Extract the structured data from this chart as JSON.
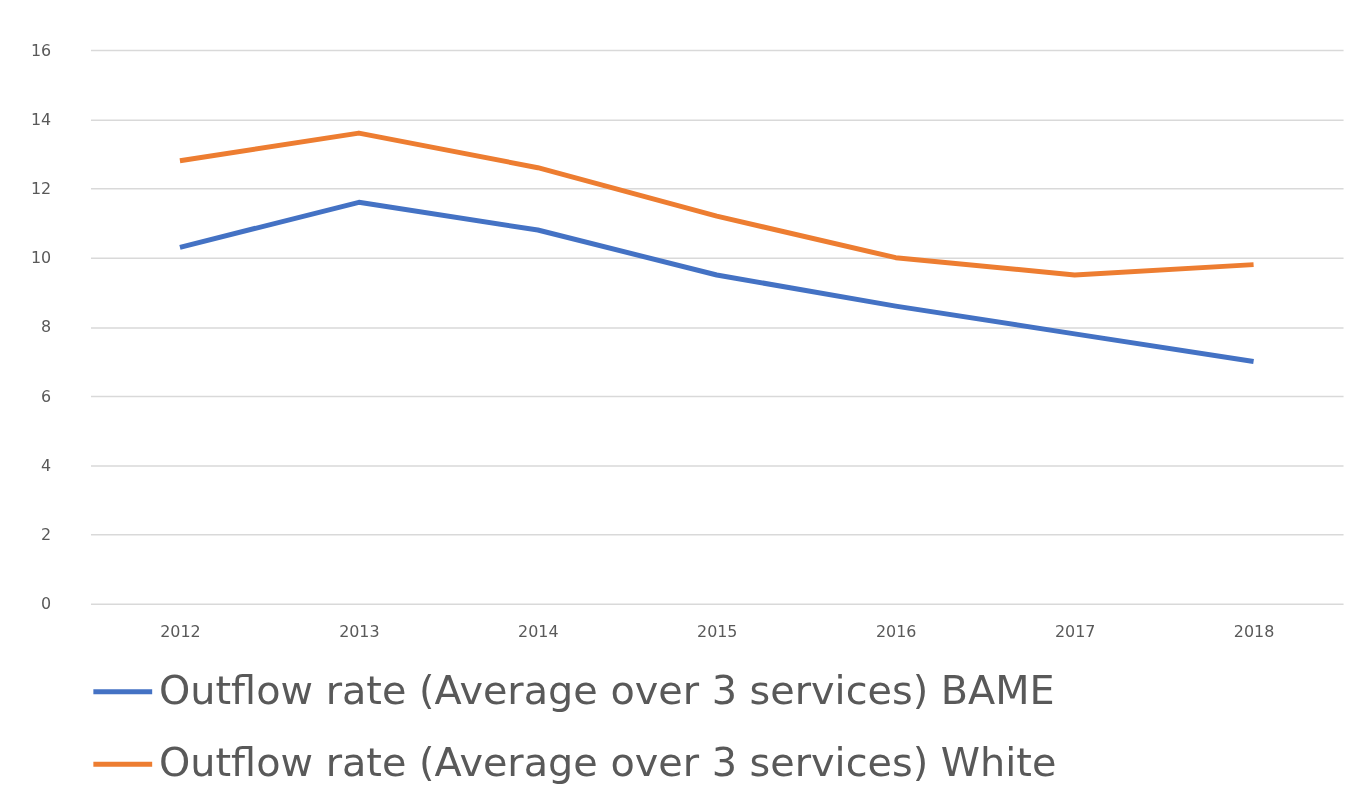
{
  "chart_data": {
    "type": "line",
    "categories": [
      "2012",
      "2013",
      "2014",
      "2015",
      "2016",
      "2017",
      "2018"
    ],
    "series": [
      {
        "name": "Outflow rate (Average over 3 services)  BAME",
        "color": "#4472c4",
        "values": [
          10.3,
          11.6,
          10.8,
          9.5,
          8.6,
          7.8,
          7.0
        ]
      },
      {
        "name": "Outflow rate (Average over 3 services)  White",
        "color": "#ed7d31",
        "values": [
          12.8,
          13.6,
          12.6,
          11.2,
          10.0,
          9.5,
          9.8
        ]
      }
    ],
    "ylim": [
      0,
      16
    ],
    "yticks": [
      0,
      2,
      4,
      6,
      8,
      10,
      12,
      14,
      16
    ],
    "grid": "y",
    "legend": "bottom",
    "marker": "none",
    "line_style": "solid"
  }
}
